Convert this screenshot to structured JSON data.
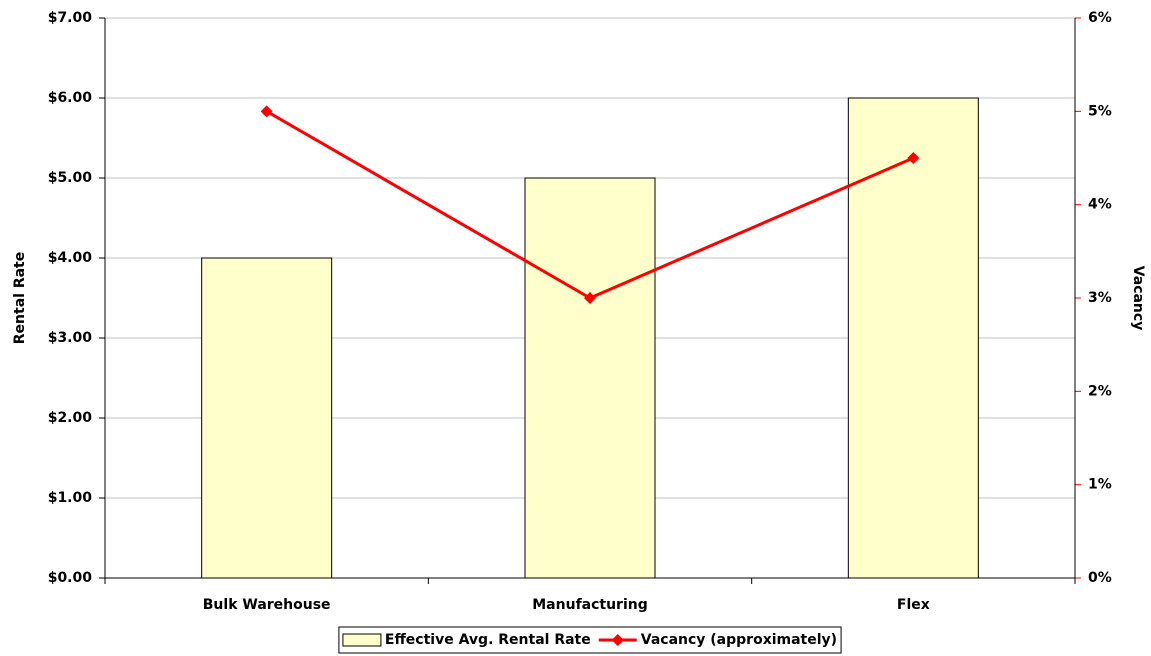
{
  "chart_data": {
    "type": "bar",
    "categories": [
      "Bulk Warehouse",
      "Manufacturing",
      "Flex"
    ],
    "series": [
      {
        "name": "Effective Avg. Rental Rate",
        "type": "bar",
        "color": "#ffffcc",
        "values": [
          4,
          5,
          6
        ]
      },
      {
        "name": "Vacancy (approximately)",
        "type": "line",
        "color": "#ff0000",
        "axis": "y2",
        "values": [
          5,
          3,
          4.5
        ]
      }
    ],
    "y_label": "Rental Rate",
    "y2_label": "Vacancy",
    "ylim": [
      0,
      7
    ],
    "yticks": [
      {
        "value": 0,
        "label": "$0.00"
      },
      {
        "value": 1,
        "label": "$1.00"
      },
      {
        "value": 2,
        "label": "$2.00"
      },
      {
        "value": 3,
        "label": "$3.00"
      },
      {
        "value": 4,
        "label": "$4.00"
      },
      {
        "value": 5,
        "label": "$5.00"
      },
      {
        "value": 6,
        "label": "$6.00"
      },
      {
        "value": 7,
        "label": "$7.00"
      }
    ],
    "y2lim": [
      0,
      6
    ],
    "y2ticks": [
      {
        "value": 0,
        "label": "0%"
      },
      {
        "value": 1,
        "label": "1%"
      },
      {
        "value": 2,
        "label": "2%"
      },
      {
        "value": 3,
        "label": "3%"
      },
      {
        "value": 4,
        "label": "4%"
      },
      {
        "value": 5,
        "label": "5%"
      },
      {
        "value": 6,
        "label": "6%"
      }
    ],
    "y2_color": "#ff0000",
    "grid": true,
    "legend": "bottom"
  }
}
